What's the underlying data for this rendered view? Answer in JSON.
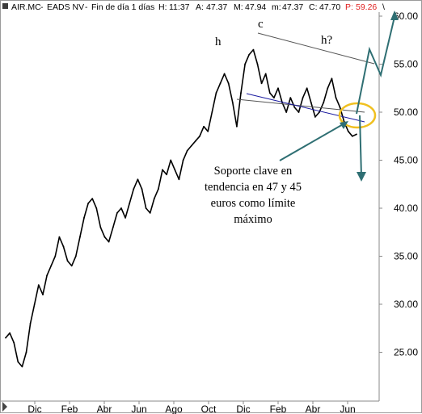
{
  "header": {
    "ticker": "AIR.MC",
    "name": "EADS NV",
    "period": "Fin de día 1 días",
    "H_label": "H:",
    "H_value": "11:37",
    "A_label": "A:",
    "A_value": "47.37",
    "M_label": "M:",
    "M_value": "47.94",
    "m_label": "m:",
    "m_value": "47.37",
    "C_label": "C:",
    "C_value": "47.70",
    "P_label": "P:",
    "P_value": "59.26"
  },
  "annotation": {
    "lines": [
      "Soporte clave en",
      "tendencia en 47 y 45",
      "euros como límite",
      "máximo"
    ]
  },
  "pattern_labels": {
    "left_shoulder": "h",
    "head": "c",
    "right_shoulder": "h?"
  },
  "colors": {
    "price": "#000000",
    "channel": "#555555",
    "neckline": "#1a1aa0",
    "arrows": "#2f6f73",
    "circle": "#f0c020",
    "last_price": "#e02020",
    "background": "#ffffff"
  },
  "chart_data": {
    "type": "line",
    "title": "",
    "xlabel": "",
    "ylabel": "",
    "ylim": [
      20,
      60
    ],
    "y_ticks": [
      "25.00",
      "30.00",
      "35.00",
      "40.00",
      "45.00",
      "50.00",
      "55.00",
      "60.00"
    ],
    "x_ticks": [
      "Dic",
      "Feb",
      "Abr",
      "Jun",
      "Ago",
      "Oct",
      "Dic",
      "Feb",
      "Abr",
      "Jun"
    ],
    "grid": false,
    "series": [
      {
        "values": [
          26.5,
          27,
          26,
          24,
          23.5,
          25,
          28,
          30,
          32,
          31,
          33,
          34,
          35,
          37,
          36,
          34.5,
          34,
          35,
          37,
          39,
          40.5,
          41,
          40,
          38,
          37,
          36.5,
          38,
          39.5,
          40,
          39,
          40.5,
          42,
          43,
          42,
          40,
          39.5,
          41,
          42,
          44,
          43.5,
          45,
          44,
          43,
          45,
          46,
          46.5,
          47,
          47.5,
          48.5,
          48,
          50,
          52,
          53,
          54,
          53,
          51,
          48.5,
          52,
          55,
          56,
          56.5,
          55,
          53,
          54,
          52,
          51.5,
          52.5,
          51,
          50,
          51.5,
          50.5,
          50,
          51.5,
          52.5,
          51,
          49.5,
          50,
          51,
          52.5,
          53.5,
          51.5,
          50.5,
          49,
          48,
          47.5,
          47.7
        ]
      }
    ]
  }
}
